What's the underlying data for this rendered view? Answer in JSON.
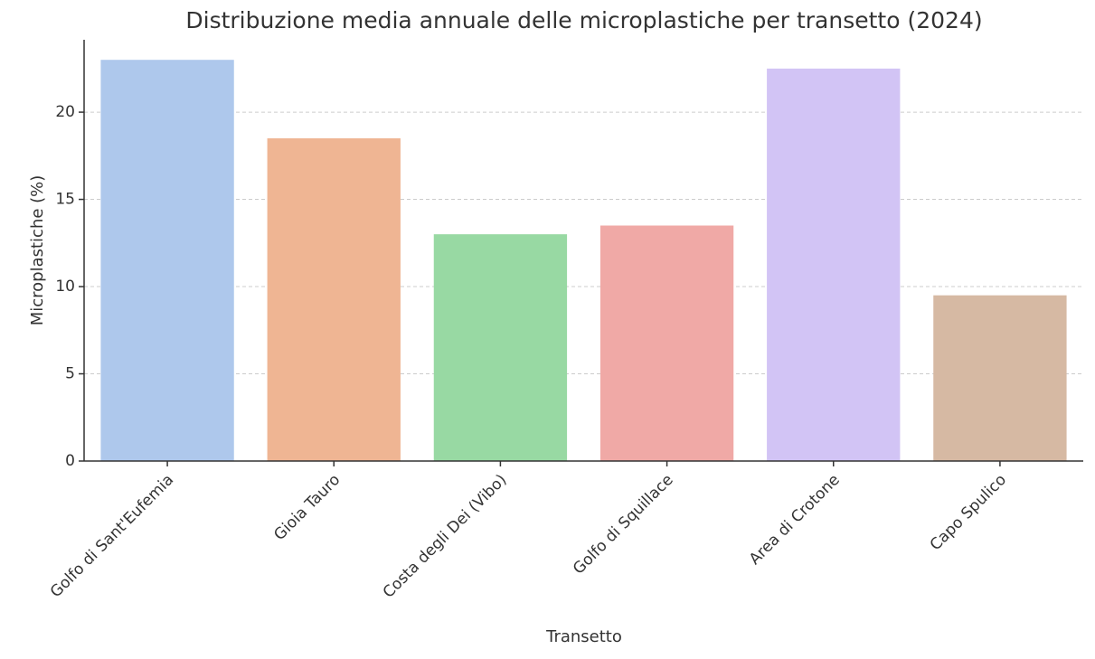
{
  "chart_data": {
    "type": "bar",
    "title": "Distribuzione media annuale delle microplastiche per transetto (2024)",
    "x_label": "Transetto",
    "y_label": "Microplastiche (%)",
    "categories": [
      "Golfo di Sant'Eufemia",
      "Gioia Tauro",
      "Costa degli Dei (Vibo)",
      "Golfo di Squillace",
      "Area di Crotone",
      "Capo Spulico"
    ],
    "values": [
      23,
      18.5,
      13,
      13.5,
      22.5,
      9.5
    ],
    "colors": [
      "#aec8ec",
      "#efb593",
      "#98d9a3",
      "#f0a9a6",
      "#d2c4f5",
      "#d6b9a3"
    ],
    "ylim": [
      0,
      24.15
    ],
    "yticks": [
      0,
      5,
      10,
      15,
      20
    ],
    "grid": true
  }
}
